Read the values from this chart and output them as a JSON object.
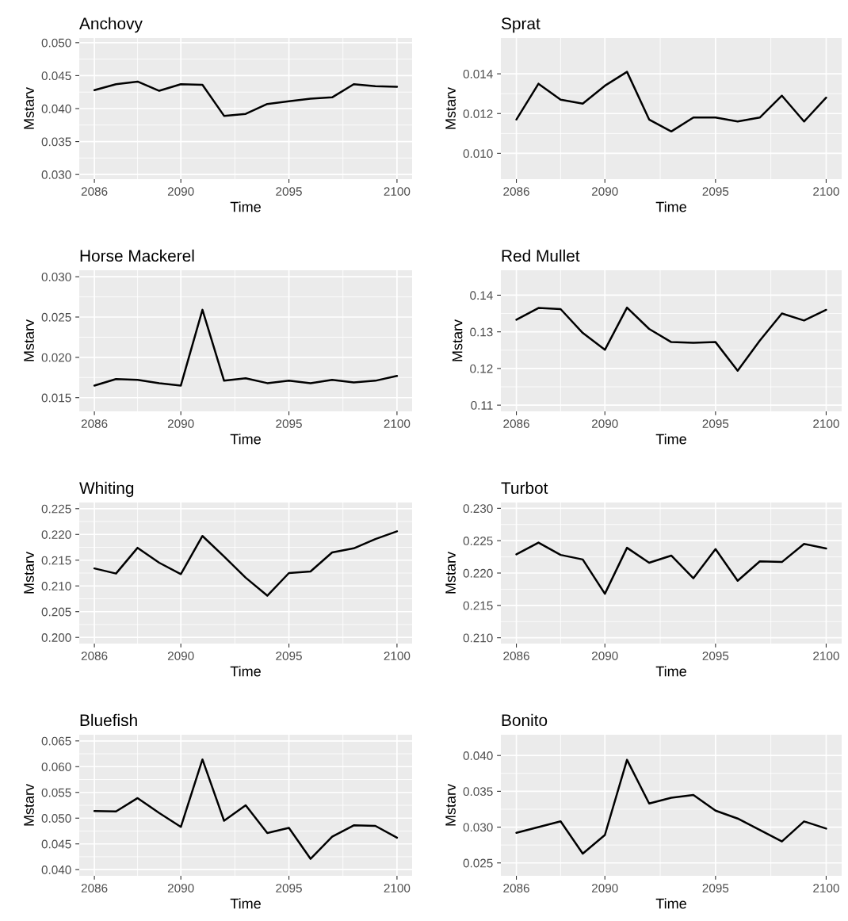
{
  "chart_data": [
    {
      "type": "line",
      "title": "Anchovy",
      "xlabel": "Time",
      "ylabel": "Mstarv",
      "x": [
        2086,
        2087,
        2088,
        2089,
        2090,
        2091,
        2092,
        2093,
        2094,
        2095,
        2096,
        2097,
        2098,
        2099,
        2100
      ],
      "series": [
        {
          "color": "#000000",
          "values": [
            0.0428,
            0.0437,
            0.0441,
            0.0427,
            0.0437,
            0.0436,
            0.0389,
            0.0392,
            0.0407,
            0.0411,
            0.0415,
            0.0417,
            0.0437,
            0.0434,
            0.0433
          ]
        }
      ],
      "xlim": [
        2085.3,
        2100.7
      ],
      "xticks": [
        2086,
        2090,
        2095,
        2100
      ],
      "ylim": [
        0.0293,
        0.0507
      ],
      "yticks": [
        {
          "value": 0.03,
          "label": "0.030"
        },
        0.035,
        {
          "value": 0.04,
          "label": "0.040"
        },
        0.045,
        {
          "value": 0.05,
          "label": "0.050"
        }
      ],
      "grid": true
    },
    {
      "type": "line",
      "title": "Sprat",
      "xlabel": "Time",
      "ylabel": "Mstarv",
      "x": [
        2086,
        2087,
        2088,
        2089,
        2090,
        2091,
        2092,
        2093,
        2094,
        2095,
        2096,
        2097,
        2098,
        2099,
        2100
      ],
      "series": [
        {
          "color": "#000000",
          "values": [
            0.0117,
            0.0135,
            0.0127,
            0.0125,
            0.0134,
            0.0141,
            0.0117,
            0.0111,
            0.0118,
            0.0118,
            0.0116,
            0.0118,
            0.0129,
            0.0116,
            0.0128
          ]
        }
      ],
      "xlim": [
        2085.3,
        2100.7
      ],
      "xticks": [
        2086,
        2090,
        2095,
        2100
      ],
      "ylim": [
        0.0087,
        0.0158
      ],
      "yticks": [
        {
          "value": 0.01,
          "label": "0.010"
        },
        0.012,
        0.014
      ],
      "grid": true
    },
    {
      "type": "line",
      "title": "Horse Mackerel",
      "xlabel": "Time",
      "ylabel": "Mstarv",
      "x": [
        2086,
        2087,
        2088,
        2089,
        2090,
        2091,
        2092,
        2093,
        2094,
        2095,
        2096,
        2097,
        2098,
        2099,
        2100
      ],
      "series": [
        {
          "color": "#000000",
          "values": [
            0.0165,
            0.0173,
            0.0172,
            0.0168,
            0.0165,
            0.0259,
            0.0171,
            0.0174,
            0.0168,
            0.0171,
            0.0168,
            0.0172,
            0.0169,
            0.0171,
            0.0177
          ]
        }
      ],
      "xlim": [
        2085.3,
        2100.7
      ],
      "xticks": [
        2086,
        2090,
        2095,
        2100
      ],
      "ylim": [
        0.0133,
        0.0308
      ],
      "yticks": [
        0.015,
        {
          "value": 0.02,
          "label": "0.020"
        },
        0.025,
        {
          "value": 0.03,
          "label": "0.030"
        }
      ],
      "grid": true
    },
    {
      "type": "line",
      "title": "Red Mullet",
      "xlabel": "Time",
      "ylabel": "Mstarv",
      "x": [
        2086,
        2087,
        2088,
        2089,
        2090,
        2091,
        2092,
        2093,
        2094,
        2095,
        2096,
        2097,
        2098,
        2099,
        2100
      ],
      "series": [
        {
          "color": "#000000",
          "values": [
            0.1333,
            0.1365,
            0.1362,
            0.1297,
            0.1251,
            0.1366,
            0.1308,
            0.1272,
            0.127,
            0.1272,
            0.1194,
            0.1276,
            0.135,
            0.1331,
            0.136
          ]
        }
      ],
      "xlim": [
        2085.3,
        2100.7
      ],
      "xticks": [
        2086,
        2090,
        2095,
        2100
      ],
      "ylim": [
        0.1083,
        0.1468
      ],
      "yticks": [
        0.11,
        0.12,
        0.13,
        0.14
      ],
      "grid": true
    },
    {
      "type": "line",
      "title": "Whiting",
      "xlabel": "Time",
      "ylabel": "Mstarv",
      "x": [
        2086,
        2087,
        2088,
        2089,
        2090,
        2091,
        2092,
        2093,
        2094,
        2095,
        2096,
        2097,
        2098,
        2099,
        2100
      ],
      "series": [
        {
          "color": "#000000",
          "values": [
            0.2134,
            0.2124,
            0.2174,
            0.2145,
            0.2123,
            0.2197,
            0.2157,
            0.2116,
            0.2081,
            0.2125,
            0.2128,
            0.2165,
            0.2173,
            0.2191,
            0.2206
          ]
        }
      ],
      "xlim": [
        2085.3,
        2100.7
      ],
      "xticks": [
        2086,
        2090,
        2095,
        2100
      ],
      "ylim": [
        0.1988,
        0.2262
      ],
      "yticks": [
        {
          "value": 0.2,
          "label": "0.200"
        },
        0.205,
        {
          "value": 0.21,
          "label": "0.210"
        },
        0.215,
        {
          "value": 0.22,
          "label": "0.220"
        },
        0.225
      ],
      "grid": true
    },
    {
      "type": "line",
      "title": "Turbot",
      "xlabel": "Time",
      "ylabel": "Mstarv",
      "x": [
        2086,
        2087,
        2088,
        2089,
        2090,
        2091,
        2092,
        2093,
        2094,
        2095,
        2096,
        2097,
        2098,
        2099,
        2100
      ],
      "series": [
        {
          "color": "#000000",
          "values": [
            0.2229,
            0.2247,
            0.2228,
            0.2221,
            0.2168,
            0.2239,
            0.2216,
            0.2227,
            0.2192,
            0.2237,
            0.2188,
            0.2218,
            0.2217,
            0.2245,
            0.2238
          ]
        }
      ],
      "xlim": [
        2085.3,
        2100.7
      ],
      "xticks": [
        2086,
        2090,
        2095,
        2100
      ],
      "ylim": [
        0.2091,
        0.2309
      ],
      "yticks": [
        {
          "value": 0.21,
          "label": "0.210"
        },
        0.215,
        {
          "value": 0.22,
          "label": "0.220"
        },
        0.225,
        {
          "value": 0.23,
          "label": "0.230"
        }
      ],
      "grid": true
    },
    {
      "type": "line",
      "title": "Bluefish",
      "xlabel": "Time",
      "ylabel": "Mstarv",
      "x": [
        2086,
        2087,
        2088,
        2089,
        2090,
        2091,
        2092,
        2093,
        2094,
        2095,
        2096,
        2097,
        2098,
        2099,
        2100
      ],
      "series": [
        {
          "color": "#000000",
          "values": [
            0.0514,
            0.0513,
            0.0539,
            0.051,
            0.0483,
            0.0614,
            0.0495,
            0.0525,
            0.0471,
            0.0481,
            0.0421,
            0.0464,
            0.0486,
            0.0485,
            0.0462
          ]
        }
      ],
      "xlim": [
        2085.3,
        2100.7
      ],
      "xticks": [
        2086,
        2090,
        2095,
        2100
      ],
      "ylim": [
        0.0388,
        0.0662
      ],
      "yticks": [
        {
          "value": 0.04,
          "label": "0.040"
        },
        0.045,
        {
          "value": 0.05,
          "label": "0.050"
        },
        0.055,
        {
          "value": 0.06,
          "label": "0.060"
        },
        0.065
      ],
      "grid": true
    },
    {
      "type": "line",
      "title": "Bonito",
      "xlabel": "Time",
      "ylabel": "Mstarv",
      "x": [
        2086,
        2087,
        2088,
        2089,
        2090,
        2091,
        2092,
        2093,
        2094,
        2095,
        2096,
        2097,
        2098,
        2099,
        2100
      ],
      "series": [
        {
          "color": "#000000",
          "values": [
            0.0292,
            0.03,
            0.0308,
            0.0263,
            0.0289,
            0.0394,
            0.0333,
            0.0341,
            0.0345,
            0.0323,
            0.0312,
            0.0296,
            0.028,
            0.0308,
            0.0298
          ]
        }
      ],
      "xlim": [
        2085.3,
        2100.7
      ],
      "xticks": [
        2086,
        2090,
        2095,
        2100
      ],
      "ylim": [
        0.0232,
        0.0429
      ],
      "yticks": [
        0.025,
        {
          "value": 0.03,
          "label": "0.030"
        },
        0.035,
        {
          "value": 0.04,
          "label": "0.040"
        }
      ],
      "grid": true
    }
  ]
}
